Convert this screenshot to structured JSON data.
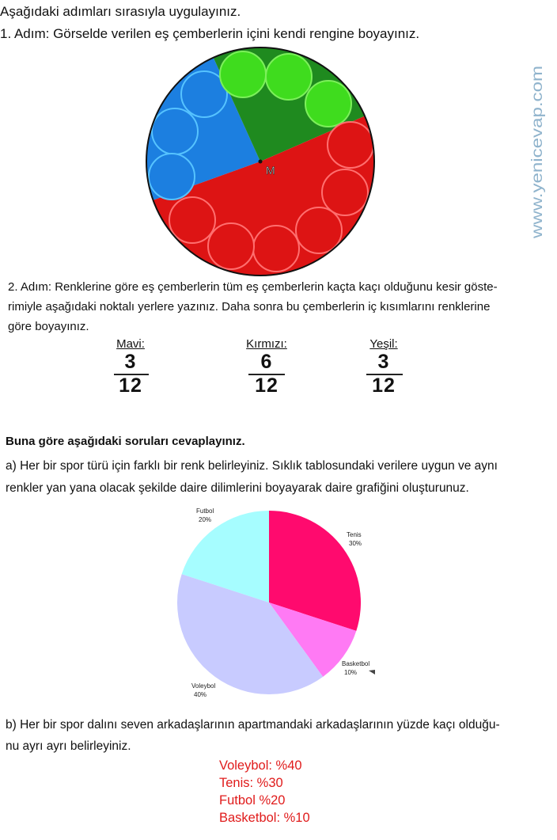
{
  "instruction_title": "Aşağıdaki adımları sırasıyla uygulayınız.",
  "step1": "1. Adım: Görselde verilen eş çemberlerin içini kendi rengine boyayınız.",
  "figure": {
    "center_label": "M",
    "colors": {
      "blue": "#1c7fe0",
      "green": "#1f8a1f",
      "light_green": "#3fdc1e",
      "red": "#dd1414"
    },
    "sectors": {
      "blue_fraction": 0.25,
      "green_fraction": 0.25,
      "red_fraction": 0.5
    },
    "circle_counts": {
      "blue": 3,
      "green": 3,
      "red": 6
    }
  },
  "watermark": "www.yenicevap.com",
  "step2": {
    "line1": "2. Adım: Renklerine göre eş çemberlerin tüm eş çemberlerin kaçta kaçı olduğunu kesir göste-",
    "line2": "rimiyle aşağıdaki noktalı yerlere yazınız. Daha sonra bu çemberlerin iç kısımlarını renklerine",
    "line3": "göre boyayınız."
  },
  "fractions": [
    {
      "name": "Mavi:",
      "numerator": "3",
      "denominator": "12"
    },
    {
      "name": "Kırmızı:",
      "numerator": "6",
      "denominator": "12"
    },
    {
      "name": "Yeşil:",
      "numerator": "3",
      "denominator": "12"
    }
  ],
  "questions_title": "Buna göre aşağıdaki soruları cevaplayınız.",
  "question_a": {
    "line1": "a) Her bir spor türü için farklı bir renk belirleyiniz. Sıklık tablosundaki verilere uygun ve aynı",
    "line2": "renkler yan yana olacak şekilde daire dilimlerini boyayarak daire grafiğini oluşturunuz."
  },
  "chart_data": {
    "type": "pie",
    "start_angle_deg": 0,
    "direction": "clockwise",
    "slices": [
      {
        "label": "Tenis",
        "value": 30,
        "value_label": "30%",
        "color": "#ff0a6e"
      },
      {
        "label": "Basketbol",
        "value": 10,
        "value_label": "10%",
        "color": "#ff7af4"
      },
      {
        "label": "Voleybol",
        "value": 40,
        "value_label": "40%",
        "color": "#c8cbff"
      },
      {
        "label": "Futbol",
        "value": 20,
        "value_label": "20%",
        "color": "#a6fdff"
      }
    ]
  },
  "question_b": {
    "line1": "b) Her bir spor dalını seven arkadaşlarının apartmandaki arkadaşlarının yüzde kaçı olduğu-",
    "line2": "nu ayrı ayrı belirleyiniz."
  },
  "answers": [
    "Voleybol: %40",
    "Tenis: %30",
    "Futbol %20",
    "Basketbol: %10"
  ],
  "answer_color": "#e01b1b"
}
